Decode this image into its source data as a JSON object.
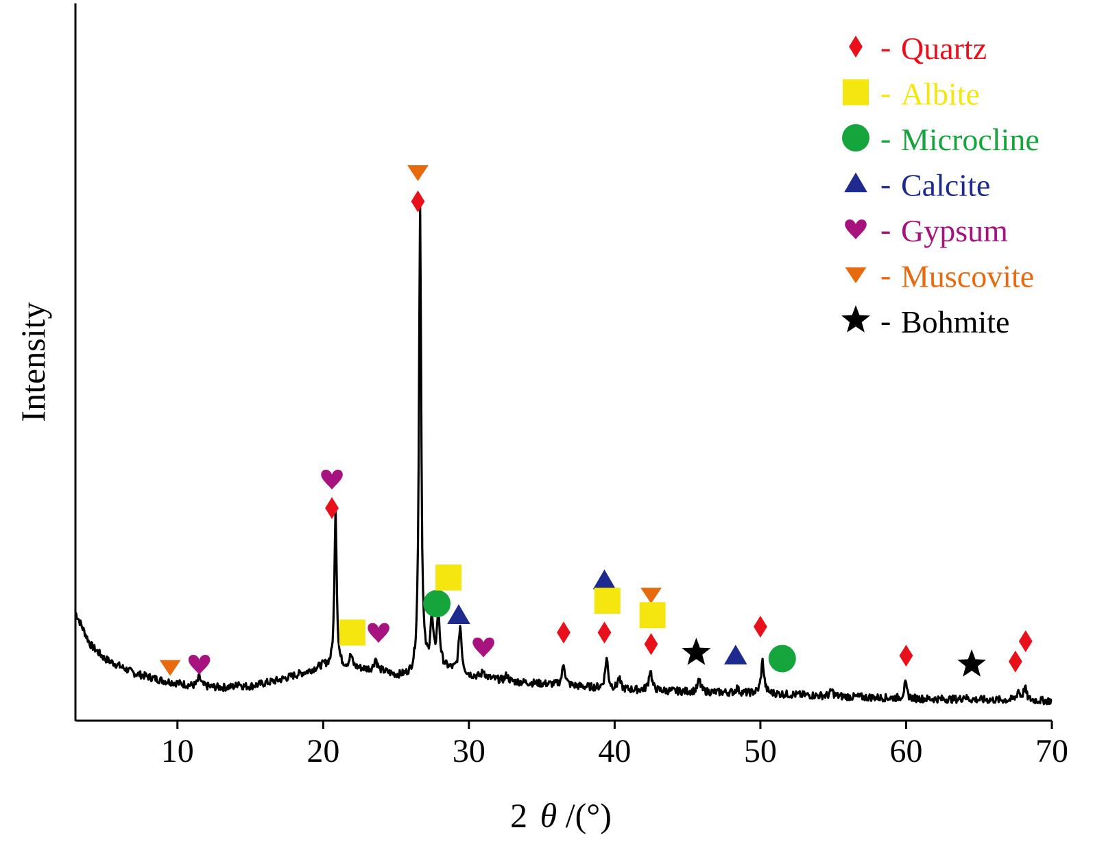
{
  "chart_data": {
    "type": "line",
    "title": "",
    "xlabel": "2θ/(°)",
    "xlabel_parts": {
      "prefix": "2",
      "symbol": "θ",
      "suffix": "/(°)"
    },
    "ylabel": "Intensity",
    "xlim": [
      3,
      70
    ],
    "ylim": [
      0,
      100
    ],
    "x_ticks": [
      10,
      20,
      30,
      40,
      50,
      60,
      70
    ],
    "y_ticks_shown": false,
    "grid": false,
    "legend_placement": "top-right",
    "series": [
      {
        "color": "#000000",
        "baseline": [
          [
            3,
            16
          ],
          [
            4,
            10.5
          ],
          [
            5,
            8
          ],
          [
            7,
            5.5
          ],
          [
            9,
            4.2
          ],
          [
            11,
            3.3
          ],
          [
            13,
            3.0
          ],
          [
            15,
            3.2
          ],
          [
            17,
            4.3
          ],
          [
            19,
            5.8
          ],
          [
            20,
            6.8
          ],
          [
            22,
            6.4
          ],
          [
            24,
            5.8
          ],
          [
            25,
            5.0
          ],
          [
            26,
            4.9
          ],
          [
            27,
            6.0
          ],
          [
            28,
            6.5
          ],
          [
            29,
            5.8
          ],
          [
            30,
            5.0
          ],
          [
            33,
            4.0
          ],
          [
            36,
            3.5
          ],
          [
            40,
            2.7
          ],
          [
            45,
            2.3
          ],
          [
            50,
            2.0
          ],
          [
            55,
            1.5
          ],
          [
            60,
            1.1
          ],
          [
            65,
            0.9
          ],
          [
            70,
            0.7
          ]
        ],
        "peaks": [
          {
            "x": 11.5,
            "height": 1.6
          },
          {
            "x": 14.2,
            "height": 0.8
          },
          {
            "x": 20.85,
            "height": 28.0
          },
          {
            "x": 21.9,
            "height": 2.0
          },
          {
            "x": 23.6,
            "height": 2.0
          },
          {
            "x": 26.65,
            "height": 81.0
          },
          {
            "x": 27.45,
            "height": 8.0
          },
          {
            "x": 27.9,
            "height": 9.0
          },
          {
            "x": 29.4,
            "height": 8.0
          },
          {
            "x": 31.0,
            "height": 1.2
          },
          {
            "x": 32.6,
            "height": 1.0
          },
          {
            "x": 36.5,
            "height": 3.7
          },
          {
            "x": 39.45,
            "height": 5.2
          },
          {
            "x": 40.3,
            "height": 1.8
          },
          {
            "x": 42.45,
            "height": 3.6
          },
          {
            "x": 45.8,
            "height": 2.0
          },
          {
            "x": 48.4,
            "height": 0.8
          },
          {
            "x": 50.15,
            "height": 5.6
          },
          {
            "x": 54.9,
            "height": 1.0
          },
          {
            "x": 59.95,
            "height": 2.5
          },
          {
            "x": 64.0,
            "height": 0.6
          },
          {
            "x": 67.7,
            "height": 1.6
          },
          {
            "x": 68.15,
            "height": 2.2
          }
        ]
      }
    ],
    "markers": [
      {
        "phase": "Muscovite",
        "x": 9.5,
        "level": 6.5
      },
      {
        "phase": "Gypsum",
        "x": 11.5,
        "level": 7.0
      },
      {
        "phase": "Quartz",
        "x": 20.6,
        "level": 34.0
      },
      {
        "phase": "Gypsum",
        "x": 20.6,
        "level": 39.0
      },
      {
        "phase": "Albite",
        "x": 22.0,
        "level": 12.5
      },
      {
        "phase": "Gypsum",
        "x": 23.8,
        "level": 12.5
      },
      {
        "phase": "Quartz",
        "x": 26.5,
        "level": 87.0
      },
      {
        "phase": "Muscovite",
        "x": 26.5,
        "level": 92.0
      },
      {
        "phase": "Microcline",
        "x": 27.8,
        "level": 17.5
      },
      {
        "phase": "Albite",
        "x": 28.6,
        "level": 22.0
      },
      {
        "phase": "Calcite",
        "x": 29.3,
        "level": 15.5
      },
      {
        "phase": "Gypsum",
        "x": 31.0,
        "level": 10.0
      },
      {
        "phase": "Quartz",
        "x": 36.5,
        "level": 12.5
      },
      {
        "phase": "Calcite",
        "x": 39.3,
        "level": 21.5
      },
      {
        "phase": "Quartz",
        "x": 39.3,
        "level": 12.5
      },
      {
        "phase": "Albite",
        "x": 39.5,
        "level": 18.0
      },
      {
        "phase": "Muscovite",
        "x": 42.5,
        "level": 19.0
      },
      {
        "phase": "Albite",
        "x": 42.6,
        "level": 15.5
      },
      {
        "phase": "Quartz",
        "x": 42.5,
        "level": 10.5
      },
      {
        "phase": "Bohmite",
        "x": 45.6,
        "level": 9.0
      },
      {
        "phase": "Calcite",
        "x": 48.3,
        "level": 8.5
      },
      {
        "phase": "Quartz",
        "x": 50.0,
        "level": 13.5
      },
      {
        "phase": "Microcline",
        "x": 51.5,
        "level": 8.0
      },
      {
        "phase": "Quartz",
        "x": 60.0,
        "level": 8.5
      },
      {
        "phase": "Bohmite",
        "x": 64.5,
        "level": 7.0
      },
      {
        "phase": "Quartz",
        "x": 67.5,
        "level": 7.5
      },
      {
        "phase": "Quartz",
        "x": 68.2,
        "level": 11.0
      }
    ],
    "legend": [
      {
        "name": "Quartz",
        "shape": "diamond",
        "color": "#e8111b"
      },
      {
        "name": "Albite",
        "shape": "square",
        "color": "#f5e60f"
      },
      {
        "name": "Microcline",
        "shape": "circle",
        "color": "#16a53c"
      },
      {
        "name": "Calcite",
        "shape": "triangle-up",
        "color": "#1d2b8e"
      },
      {
        "name": "Gypsum",
        "shape": "heart",
        "color": "#a6127e"
      },
      {
        "name": "Muscovite",
        "shape": "triangle-down",
        "color": "#e86a0f"
      },
      {
        "name": "Bohmite",
        "shape": "star",
        "color": "#000000"
      }
    ],
    "legend_separator": "-"
  }
}
